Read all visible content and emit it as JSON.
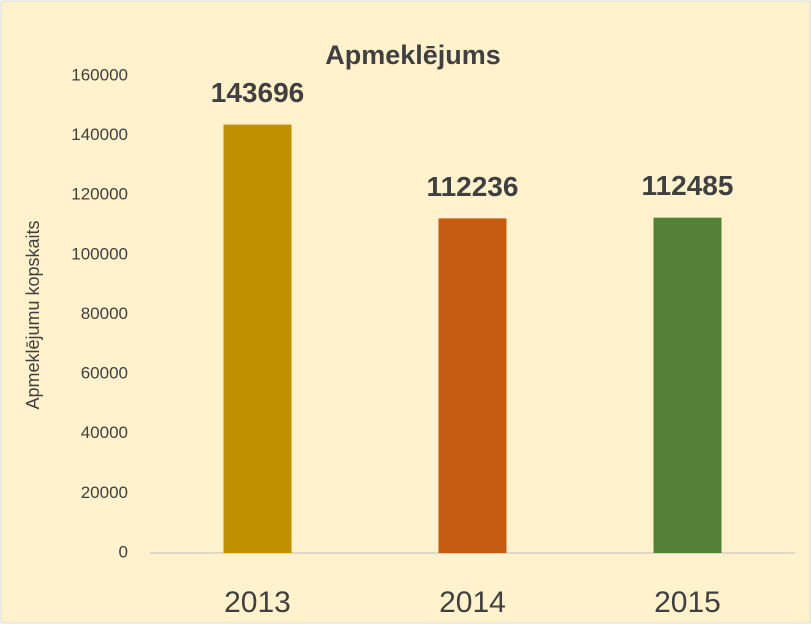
{
  "chart_data": {
    "type": "bar",
    "title": "Apmeklējums",
    "y_label": "Apmeklējumu kopskaits",
    "categories": [
      "2013",
      "2014",
      "2015"
    ],
    "values": [
      143696,
      112236,
      112485
    ],
    "colors": [
      "#bf9000",
      "#c55a11",
      "#538135"
    ],
    "ylim": [
      0,
      160000
    ],
    "yticks": [
      0,
      20000,
      40000,
      60000,
      80000,
      100000,
      120000,
      140000,
      160000
    ],
    "grid": false
  }
}
